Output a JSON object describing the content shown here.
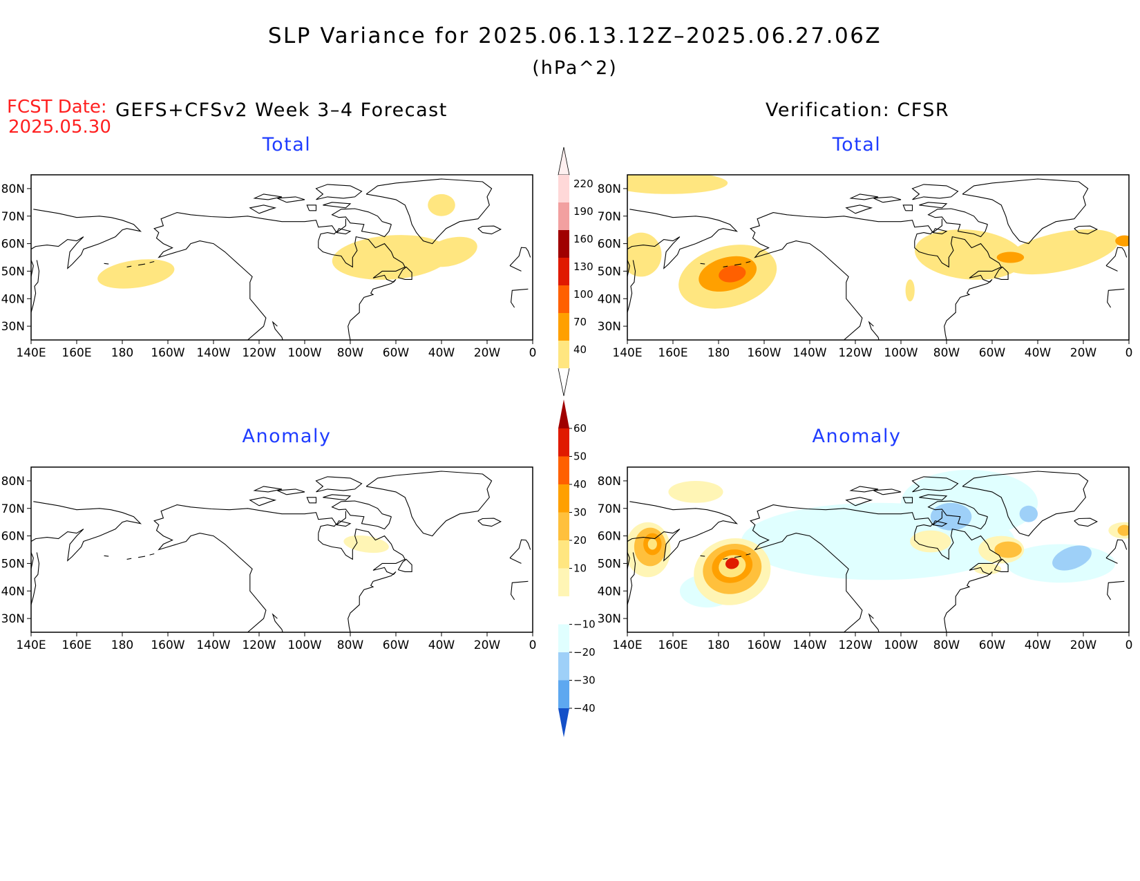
{
  "header": {
    "title": "SLP Variance for 2025.06.13.12Z–2025.06.27.06Z",
    "units": "(hPa^2)",
    "fcst_label": "FCST Date:",
    "fcst_date": "2025.05.30",
    "left_heading": "GEFS+CFSv2 Week 3–4 Forecast",
    "right_heading": "Verification: CFSR"
  },
  "panels": [
    {
      "id": "fcst-total",
      "title": "Total",
      "field": "total",
      "blobs": [
        {
          "lon": -174,
          "lat": 49,
          "rl": 17,
          "rt": 5,
          "rot": 8,
          "level": 40
        },
        {
          "lon": -62,
          "lat": 55,
          "rl": 26,
          "rt": 8,
          "rot": 4,
          "level": 40
        },
        {
          "lon": -36,
          "lat": 57,
          "rl": 12,
          "rt": 5,
          "rot": 15,
          "level": 40
        },
        {
          "lon": -40,
          "lat": 74,
          "rl": 6,
          "rt": 4,
          "rot": 0,
          "level": 40
        }
      ]
    },
    {
      "id": "verif-total",
      "title": "Total",
      "field": "total",
      "blobs": [
        {
          "lon": -176,
          "lat": 48,
          "rl": 22,
          "rt": 11,
          "rot": 15,
          "level": 40
        },
        {
          "lon": -176,
          "lat": 49,
          "rl": 13,
          "rt": 6,
          "rot": 15,
          "level": 70
        },
        {
          "lon": -174,
          "lat": 49,
          "rl": 6,
          "rt": 3,
          "rot": 10,
          "level": 100
        },
        {
          "lon": 158,
          "lat": 82,
          "rl": 26,
          "rt": 4,
          "rot": 0,
          "level": 40
        },
        {
          "lon": 146,
          "lat": 56,
          "rl": 9,
          "rt": 8,
          "rot": 0,
          "level": 40
        },
        {
          "lon": -70,
          "lat": 56,
          "rl": 24,
          "rt": 9,
          "rot": -5,
          "level": 40
        },
        {
          "lon": -30,
          "lat": 57,
          "rl": 26,
          "rt": 7,
          "rot": 12,
          "level": 40
        },
        {
          "lon": -52,
          "lat": 55,
          "rl": 6,
          "rt": 2,
          "rot": 0,
          "level": 70
        },
        {
          "lon": -2,
          "lat": 61,
          "rl": 4,
          "rt": 2,
          "rot": 0,
          "level": 70
        },
        {
          "lon": -96,
          "lat": 43,
          "rl": 2,
          "rt": 4,
          "rot": 0,
          "level": 40
        }
      ]
    },
    {
      "id": "fcst-anomaly",
      "title": "Anomaly",
      "field": "anomaly",
      "blobs": [
        {
          "lon": -73,
          "lat": 57,
          "rl": 10,
          "rt": 3,
          "rot": -8,
          "level": 10
        }
      ]
    },
    {
      "id": "verif-anomaly",
      "title": "Anomaly",
      "field": "anomaly",
      "blobs": [
        {
          "lon": -110,
          "lat": 58,
          "rl": 60,
          "rt": 14,
          "rot": 0,
          "level": -10
        },
        {
          "lon": -70,
          "lat": 72,
          "rl": 30,
          "rt": 12,
          "rot": 0,
          "level": -10
        },
        {
          "lon": -30,
          "lat": 50,
          "rl": 24,
          "rt": 7,
          "rot": 0,
          "level": -10
        },
        {
          "lon": 175,
          "lat": 40,
          "rl": 12,
          "rt": 6,
          "rot": 0,
          "level": -10
        },
        {
          "lon": -78,
          "lat": 67,
          "rl": 9,
          "rt": 5,
          "rot": 0,
          "level": -20
        },
        {
          "lon": -44,
          "lat": 68,
          "rl": 4,
          "rt": 3,
          "rot": 0,
          "level": -20
        },
        {
          "lon": -25,
          "lat": 52,
          "rl": 9,
          "rt": 4,
          "rot": 20,
          "level": -20
        },
        {
          "lon": -174,
          "lat": 47,
          "rl": 17,
          "rt": 12,
          "rot": 15,
          "level": 10
        },
        {
          "lon": -174,
          "lat": 48,
          "rl": 13,
          "rt": 9,
          "rot": 15,
          "level": 20
        },
        {
          "lon": -174,
          "lat": 49,
          "rl": 9,
          "rt": 6,
          "rot": 15,
          "level": 30
        },
        {
          "lon": -174,
          "lat": 49,
          "rl": 6,
          "rt": 4,
          "rot": 15,
          "level": 40
        },
        {
          "lon": -174,
          "lat": 50,
          "rl": 3,
          "rt": 2,
          "rot": 15,
          "level": 50
        },
        {
          "lon": 149,
          "lat": 55,
          "rl": 10,
          "rt": 10,
          "rot": 0,
          "level": 10
        },
        {
          "lon": 150,
          "lat": 56,
          "rl": 7,
          "rt": 7,
          "rot": 0,
          "level": 20
        },
        {
          "lon": 151,
          "lat": 57,
          "rl": 4,
          "rt": 4,
          "rot": 0,
          "level": 30
        },
        {
          "lon": 151,
          "lat": 57,
          "rl": 2,
          "rt": 2,
          "rot": 0,
          "level": 40
        },
        {
          "lon": 170,
          "lat": 76,
          "rl": 12,
          "rt": 4,
          "rot": 0,
          "level": 10
        },
        {
          "lon": -140,
          "lat": 88,
          "rl": 40,
          "rt": 2,
          "rot": 0,
          "level": 10
        },
        {
          "lon": -56,
          "lat": 55,
          "rl": 10,
          "rt": 5,
          "rot": 0,
          "level": 10
        },
        {
          "lon": -53,
          "lat": 55,
          "rl": 6,
          "rt": 3,
          "rot": 0,
          "level": 20
        },
        {
          "lon": -87,
          "lat": 58,
          "rl": 9,
          "rt": 4,
          "rot": 0,
          "level": 10
        },
        {
          "lon": -2,
          "lat": 62,
          "rl": 7,
          "rt": 3,
          "rot": 0,
          "level": 10
        },
        {
          "lon": -2,
          "lat": 62,
          "rl": 3,
          "rt": 2,
          "rot": 0,
          "level": 20
        },
        {
          "lon": -62,
          "lat": 48,
          "rl": 6,
          "rt": 2,
          "rot": 0,
          "level": 10
        }
      ]
    }
  ],
  "map_axes": {
    "lon_ticks": [
      "140E",
      "160E",
      "180",
      "160W",
      "140W",
      "120W",
      "100W",
      "80W",
      "60W",
      "40W",
      "20W",
      "0"
    ],
    "lat_ticks": [
      "80N",
      "70N",
      "60N",
      "50N",
      "40N",
      "30N"
    ],
    "lon_range": [
      140,
      360
    ],
    "lat_range": [
      25,
      85
    ]
  },
  "colorbars": {
    "total": {
      "labels": [
        "220",
        "190",
        "160",
        "130",
        "100",
        "70",
        "40"
      ],
      "colors": [
        "#ffd8d8",
        "#f2a0a0",
        "#a00000",
        "#e01a00",
        "#ff6000",
        "#ffa000",
        "#ffe680"
      ],
      "levels": [
        40,
        70,
        100,
        130,
        160,
        190,
        220
      ]
    },
    "anomaly": {
      "labels": [
        "60",
        "50",
        "40",
        "30",
        "20",
        "10",
        "−10",
        "−20",
        "−30",
        "−40"
      ],
      "pos_colors": [
        "#a00000",
        "#e01a00",
        "#ff6000",
        "#ffa000",
        "#ffc03c",
        "#ffe680",
        "#fff5b5"
      ],
      "neg_colors": [
        "#e0ffff",
        "#9ed0f8",
        "#5ea8f0",
        "#2878e8",
        "#1450c8"
      ],
      "levels": [
        -40,
        -30,
        -20,
        -10,
        10,
        20,
        30,
        40,
        50,
        60
      ]
    }
  },
  "level_colors": {
    "40": "#ffe680",
    "70": "#ffa000",
    "100": "#ff6000",
    "10": "#fff5b5",
    "20": "#ffc03c",
    "30": "#ffa000",
    "50": "#e01a00",
    "-10": "#e0ffff",
    "-20": "#9ed0f8",
    "-30": "#5ea8f0"
  },
  "palette": {
    "title_color": "#000000",
    "panel_title_color": "#1f3cff",
    "fcst_color": "#ff2020"
  }
}
